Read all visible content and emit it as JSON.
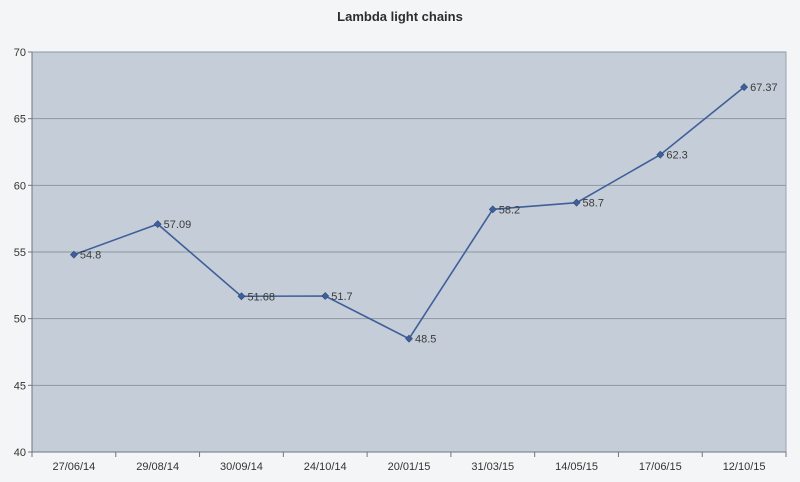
{
  "chart_data": {
    "type": "line",
    "title": "Lambda light chains",
    "xlabel": "",
    "ylabel": "",
    "categories": [
      "27/06/14",
      "29/08/14",
      "30/09/14",
      "24/10/14",
      "20/01/15",
      "31/03/15",
      "14/05/15",
      "17/06/15",
      "12/10/15"
    ],
    "series": [
      {
        "values": [
          54.8,
          57.09,
          51.68,
          51.7,
          48.5,
          58.2,
          58.7,
          62.3,
          67.37
        ],
        "labels": [
          "54.8",
          "57.09",
          "51.68",
          "51.7",
          "48.5",
          "58.2",
          "58.7",
          "62.3",
          "67.37"
        ],
        "color": "#3f5f9a"
      }
    ],
    "ylim": [
      40,
      70
    ],
    "yticks": [
      "40",
      "45",
      "50",
      "55",
      "60",
      "65",
      "70"
    ],
    "grid": true,
    "legend": "none",
    "plot_background": "#c5ced8",
    "gridline_color": "#8c96a2"
  }
}
